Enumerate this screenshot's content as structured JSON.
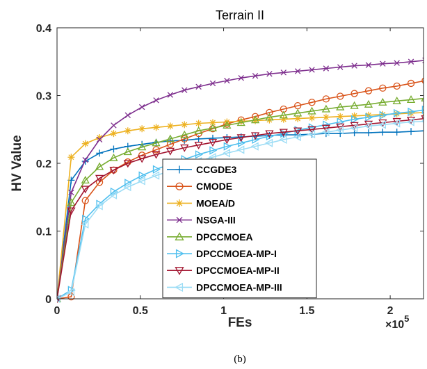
{
  "chart_data": {
    "type": "line",
    "title": "Terrain II",
    "xlabel": "FEs",
    "ylabel": "HV Value",
    "x_multiplier_label": "×10",
    "x_multiplier_exponent": "5",
    "caption": "(b)",
    "xlim": [
      0,
      2.2
    ],
    "ylim": [
      0,
      0.4
    ],
    "xticks": [
      0,
      0.5,
      1,
      1.5,
      2
    ],
    "xtick_labels": [
      "0",
      "0.5",
      "1",
      "1.5",
      "2"
    ],
    "yticks": [
      0,
      0.1,
      0.2,
      0.3,
      0.4
    ],
    "ytick_labels": [
      "0",
      "0.1",
      "0.2",
      "0.3",
      "0.4"
    ],
    "grid": false,
    "legend_position": "center",
    "x": [
      0,
      0.085,
      0.17,
      0.255,
      0.34,
      0.425,
      0.51,
      0.595,
      0.68,
      0.765,
      0.85,
      0.935,
      1.02,
      1.105,
      1.19,
      1.275,
      1.36,
      1.445,
      1.53,
      1.615,
      1.7,
      1.785,
      1.87,
      1.955,
      2.04,
      2.125,
      2.21
    ],
    "series": [
      {
        "name": "CCGDE3",
        "color": "#0072BD",
        "marker": "plus",
        "values": [
          0,
          0.175,
          0.203,
          0.215,
          0.221,
          0.225,
          0.228,
          0.231,
          0.233,
          0.234,
          0.236,
          0.237,
          0.238,
          0.239,
          0.24,
          0.241,
          0.242,
          0.242,
          0.243,
          0.244,
          0.244,
          0.245,
          0.245,
          0.246,
          0.246,
          0.247,
          0.248
        ]
      },
      {
        "name": "CMODE",
        "color": "#D95319",
        "marker": "circle",
        "values": [
          0,
          0.003,
          0.145,
          0.172,
          0.19,
          0.202,
          0.212,
          0.22,
          0.228,
          0.236,
          0.244,
          0.251,
          0.258,
          0.264,
          0.269,
          0.275,
          0.28,
          0.285,
          0.29,
          0.295,
          0.299,
          0.303,
          0.307,
          0.311,
          0.314,
          0.318,
          0.322
        ]
      },
      {
        "name": "MOEA/D",
        "color": "#EDB120",
        "marker": "asterisk",
        "values": [
          0,
          0.209,
          0.229,
          0.238,
          0.244,
          0.248,
          0.251,
          0.253,
          0.255,
          0.257,
          0.259,
          0.26,
          0.261,
          0.262,
          0.263,
          0.264,
          0.265,
          0.266,
          0.267,
          0.268,
          0.269,
          0.27,
          0.271,
          0.272,
          0.273,
          0.274,
          0.275
        ]
      },
      {
        "name": "NSGA-III",
        "color": "#7E2F8E",
        "marker": "x",
        "values": [
          0,
          0.157,
          0.205,
          0.235,
          0.256,
          0.271,
          0.283,
          0.293,
          0.301,
          0.308,
          0.313,
          0.318,
          0.322,
          0.326,
          0.329,
          0.332,
          0.334,
          0.336,
          0.338,
          0.34,
          0.342,
          0.344,
          0.345,
          0.347,
          0.348,
          0.35,
          0.352
        ]
      },
      {
        "name": "DPCCMOEA",
        "color": "#77AC30",
        "marker": "triangle-up",
        "values": [
          0,
          0.142,
          0.175,
          0.195,
          0.208,
          0.217,
          0.224,
          0.23,
          0.236,
          0.242,
          0.248,
          0.252,
          0.256,
          0.26,
          0.264,
          0.268,
          0.271,
          0.274,
          0.277,
          0.28,
          0.283,
          0.285,
          0.287,
          0.29,
          0.292,
          0.294,
          0.296
        ]
      },
      {
        "name": "DPCCMOEA-MP-I",
        "color": "#4DBEEE",
        "marker": "triangle-right",
        "values": [
          0,
          0.013,
          0.118,
          0.14,
          0.158,
          0.171,
          0.182,
          0.191,
          0.199,
          0.206,
          0.213,
          0.219,
          0.225,
          0.23,
          0.235,
          0.24,
          0.244,
          0.249,
          0.253,
          0.257,
          0.261,
          0.265,
          0.268,
          0.271,
          0.274,
          0.276,
          0.279
        ]
      },
      {
        "name": "DPCCMOEA-MP-II",
        "color": "#A2142F",
        "marker": "triangle-down",
        "values": [
          0,
          0.13,
          0.162,
          0.178,
          0.19,
          0.2,
          0.207,
          0.213,
          0.218,
          0.223,
          0.227,
          0.231,
          0.235,
          0.238,
          0.241,
          0.244,
          0.246,
          0.248,
          0.25,
          0.252,
          0.254,
          0.256,
          0.258,
          0.26,
          0.262,
          0.264,
          0.266
        ]
      },
      {
        "name": "DPCCMOEA-MP-III",
        "color": "#9BDCF5",
        "marker": "triangle-left",
        "values": [
          0,
          0.01,
          0.11,
          0.137,
          0.153,
          0.165,
          0.174,
          0.182,
          0.189,
          0.196,
          0.203,
          0.209,
          0.215,
          0.22,
          0.225,
          0.23,
          0.235,
          0.239,
          0.243,
          0.246,
          0.249,
          0.252,
          0.255,
          0.257,
          0.259,
          0.261,
          0.262
        ]
      }
    ]
  }
}
